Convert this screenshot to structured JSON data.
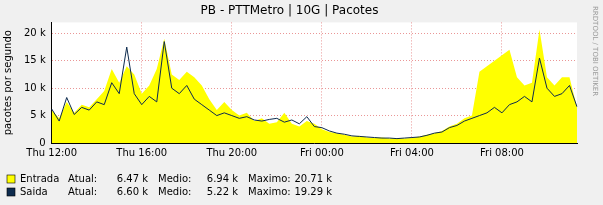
{
  "chart_data": {
    "type": "line",
    "title": "PB - PTTMetro | 10G | Pacotes",
    "y_label": "pacotes por segundo",
    "annotations": [
      "RRDTOOL / TOBI OETIKER"
    ],
    "categories": [
      "Thu 12:00",
      null,
      null,
      null,
      null,
      null,
      null,
      null,
      null,
      null,
      null,
      null,
      "Thu 16:00",
      null,
      null,
      null,
      null,
      null,
      null,
      null,
      null,
      null,
      null,
      null,
      "Thu 20:00",
      null,
      null,
      null,
      null,
      null,
      null,
      null,
      null,
      null,
      null,
      null,
      "Fri 00:00",
      null,
      null,
      null,
      null,
      null,
      null,
      null,
      null,
      null,
      null,
      null,
      "Fri 04:00",
      null,
      null,
      null,
      null,
      null,
      null,
      null,
      null,
      null,
      null,
      null,
      "Fri 08:00",
      null,
      null,
      null,
      null,
      null,
      null,
      null,
      null,
      null,
      null
    ],
    "series": [
      {
        "name": "Entrada",
        "type": "area",
        "color": "#ffff00",
        "stats": [
          {
            "value": 6470,
            "label": "6.47 k"
          },
          {
            "value": 6940,
            "label": "6.94 k"
          },
          {
            "value": 20710,
            "label": "20.71 k"
          }
        ],
        "values": [
          6000,
          4500,
          7500,
          5500,
          7000,
          6500,
          8000,
          9500,
          13500,
          11000,
          14000,
          12500,
          9000,
          10500,
          13500,
          19000,
          12500,
          11500,
          13000,
          12000,
          10500,
          8000,
          6000,
          7500,
          6000,
          5000,
          5500,
          4000,
          4500,
          3500,
          3800,
          5500,
          3500,
          3000,
          4000,
          3500,
          2500,
          2000,
          1800,
          1500,
          1200,
          1300,
          1000,
          900,
          1000,
          800,
          900,
          800,
          900,
          1200,
          1500,
          1800,
          2200,
          3000,
          3500,
          4500,
          5000,
          13000,
          14000,
          15000,
          16000,
          17000,
          12000,
          10500,
          11000,
          20700,
          12000,
          10500,
          12000,
          12000,
          6470
        ]
      },
      {
        "name": "Saida",
        "type": "line",
        "color": "#0d2b4e",
        "stats": [
          {
            "value": 6600,
            "label": "6.60 k"
          },
          {
            "value": 5220,
            "label": "5.22 k"
          },
          {
            "value": 19290,
            "label": "19.29 k"
          }
        ],
        "values": [
          6200,
          4000,
          8300,
          5200,
          6500,
          6000,
          7500,
          7000,
          11000,
          9000,
          17500,
          9000,
          7000,
          8500,
          7500,
          18500,
          10000,
          9000,
          10500,
          8000,
          7000,
          6000,
          5000,
          5500,
          5000,
          4500,
          4800,
          4200,
          4000,
          4300,
          4500,
          3800,
          4200,
          3500,
          4800,
          3000,
          2800,
          2200,
          1800,
          1600,
          1300,
          1200,
          1100,
          1000,
          900,
          900,
          800,
          900,
          1000,
          1100,
          1400,
          1800,
          2000,
          2800,
          3200,
          4000,
          4500,
          5000,
          5500,
          6500,
          5500,
          7000,
          7500,
          8500,
          7500,
          15500,
          10000,
          8500,
          9000,
          10500,
          6600
        ]
      }
    ],
    "legend_fields": [
      "Atual:",
      "Medio:",
      "Maximo:"
    ],
    "legend": "bottom",
    "ylim": [
      0,
      22000
    ],
    "yticks": [
      0,
      {
        "value": 5000,
        "label": "5 k"
      },
      {
        "value": 10000,
        "label": "10 k"
      },
      {
        "value": 15000,
        "label": "15 k"
      },
      {
        "value": 20000,
        "label": "20 k"
      }
    ],
    "grid": true
  }
}
